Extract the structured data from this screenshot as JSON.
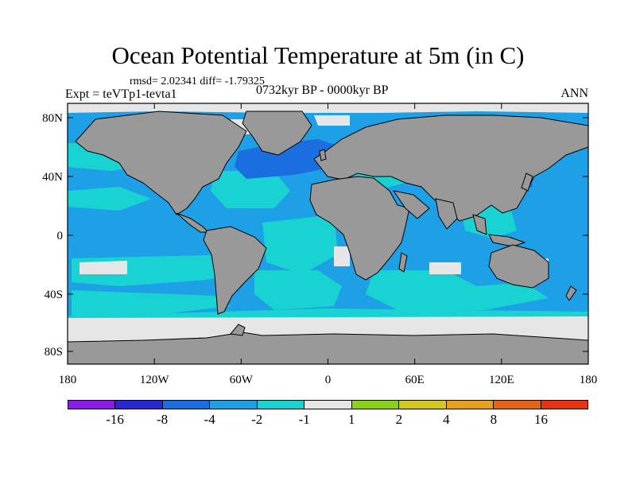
{
  "title": "Ocean Potential Temperature at 5m (in C)",
  "stats": "rmsd= 2.02341 diff= -1.79325",
  "experiment": "Expt = teVTp1-tevta1",
  "period": "0732kyr BP - 0000kyr BP",
  "season": "ANN",
  "lat_ticks": [
    "80N",
    "40N",
    "0",
    "40S",
    "80S"
  ],
  "lon_ticks": [
    "180",
    "120W",
    "60W",
    "0",
    "60E",
    "120E",
    "180"
  ],
  "colorbar": {
    "colors": [
      "#8a1ae6",
      "#2828d2",
      "#1a6ee0",
      "#1ea0e6",
      "#19d2d2",
      "#e6e6e6",
      "#8ad21a",
      "#d2c81e",
      "#e6a01a",
      "#e66414",
      "#e63214"
    ],
    "labels": [
      "-16",
      "-8",
      "-4",
      "-2",
      "-1",
      "1",
      "2",
      "4",
      "8",
      "16"
    ]
  },
  "map_colors": {
    "land": "#999999",
    "ocean_default": "#1ea0e6",
    "anomaly_small": "#19d2d2",
    "anomaly_large": "#1a6ee0",
    "neutral": "#e6e6e6"
  }
}
